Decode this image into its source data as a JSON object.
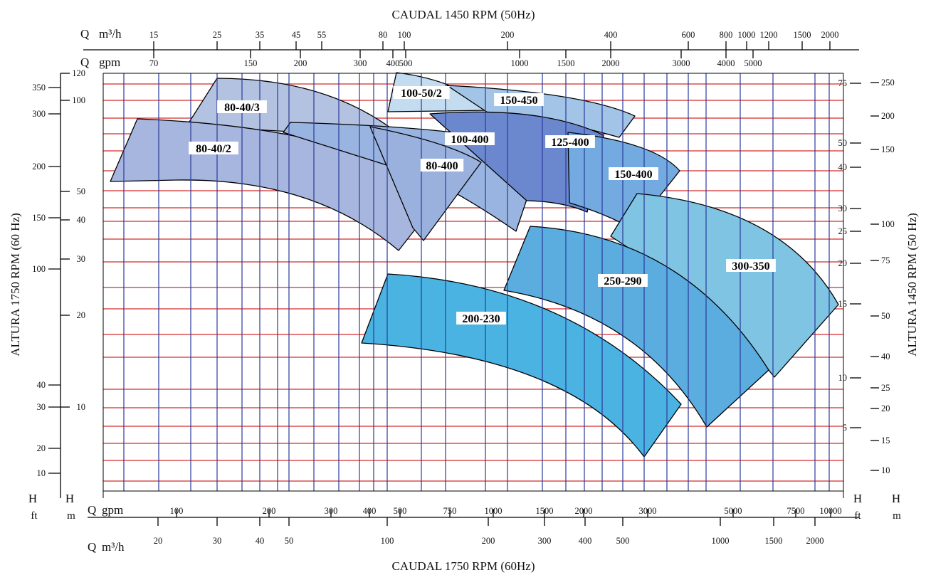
{
  "chart_data": {
    "type": "area",
    "title_top": "CAUDAL 1450 RPM (50Hz)",
    "title_bottom": "CAUDAL 1750 RPM (60Hz)",
    "ylabel_left": "ALTURA 1750 RPM (60 Hz)",
    "ylabel_right": "ALTURA 1450 RPM (50 Hz)",
    "x_scale": "log",
    "y_scale": "log",
    "grid": true,
    "colors": {
      "grid_vertical": "#2b3a9a",
      "grid_horizontal": "#d42a2a",
      "axis": "#000000"
    },
    "axes": {
      "top_m3h": {
        "q_label": "Q",
        "unit": "m³/h",
        "ticks": [
          "15",
          "25",
          "35",
          "45",
          "55",
          "80",
          "100",
          "200",
          "400",
          "600",
          "800",
          "1000",
          "1200",
          "1500",
          "2000"
        ]
      },
      "top_gpm": {
        "q_label": "Q",
        "unit": "gpm",
        "ticks": [
          "70",
          "150",
          "200",
          "300",
          "400",
          "500",
          "1000",
          "1500",
          "2000",
          "3000",
          "4000",
          "5000"
        ]
      },
      "bottom_gpm": {
        "q_label": "Q",
        "unit": "gpm",
        "ticks": [
          "100",
          "200",
          "300",
          "400",
          "500",
          "750",
          "1000",
          "1500",
          "2000",
          "3000",
          "5000",
          "7500",
          "10000"
        ]
      },
      "bottom_m3h": {
        "q_label": "Q",
        "unit": "m³/h",
        "ticks": [
          "20",
          "30",
          "40",
          "50",
          "100",
          "200",
          "300",
          "400",
          "500",
          "1000",
          "1500",
          "2000"
        ]
      },
      "left_ft": {
        "h_label": "H",
        "unit": "ft",
        "ticks": [
          "350",
          "300",
          "200",
          "150",
          "100",
          "40",
          "30",
          "20",
          "10"
        ]
      },
      "left_m": {
        "h_label": "H",
        "unit": "m",
        "ticks": [
          "120",
          "100",
          "50",
          "40",
          "30",
          "20",
          "10"
        ]
      },
      "right_m": {
        "h_label": "H",
        "unit": "m",
        "ticks": [
          "75",
          "50",
          "40",
          "30",
          "25",
          "20",
          "15",
          "10",
          "5"
        ]
      },
      "right_ft": {
        "h_label": "H",
        "unit": "ft",
        "ticks": [
          "250",
          "200",
          "150",
          "100",
          "75",
          "50",
          "40",
          "25",
          "20",
          "15",
          "10"
        ]
      }
    },
    "series": [
      {
        "name": "80-40/3",
        "color": "#b3c2e1"
      },
      {
        "name": "80-40/2",
        "color": "#a7b6de"
      },
      {
        "name": "100-50/2",
        "color": "#c4dcf0"
      },
      {
        "name": "150-450",
        "color": "#a2c4e7"
      },
      {
        "name": "100-400",
        "color": "#99b4e0"
      },
      {
        "name": "80-400",
        "color": "#9ab1de"
      },
      {
        "name": "125-400",
        "color": "#6b88cf"
      },
      {
        "name": "150-400",
        "color": "#73abe1"
      },
      {
        "name": "300-350",
        "color": "#80c4e4"
      },
      {
        "name": "250-290",
        "color": "#5caddf"
      },
      {
        "name": "200-230",
        "color": "#4ab3e2"
      }
    ]
  }
}
